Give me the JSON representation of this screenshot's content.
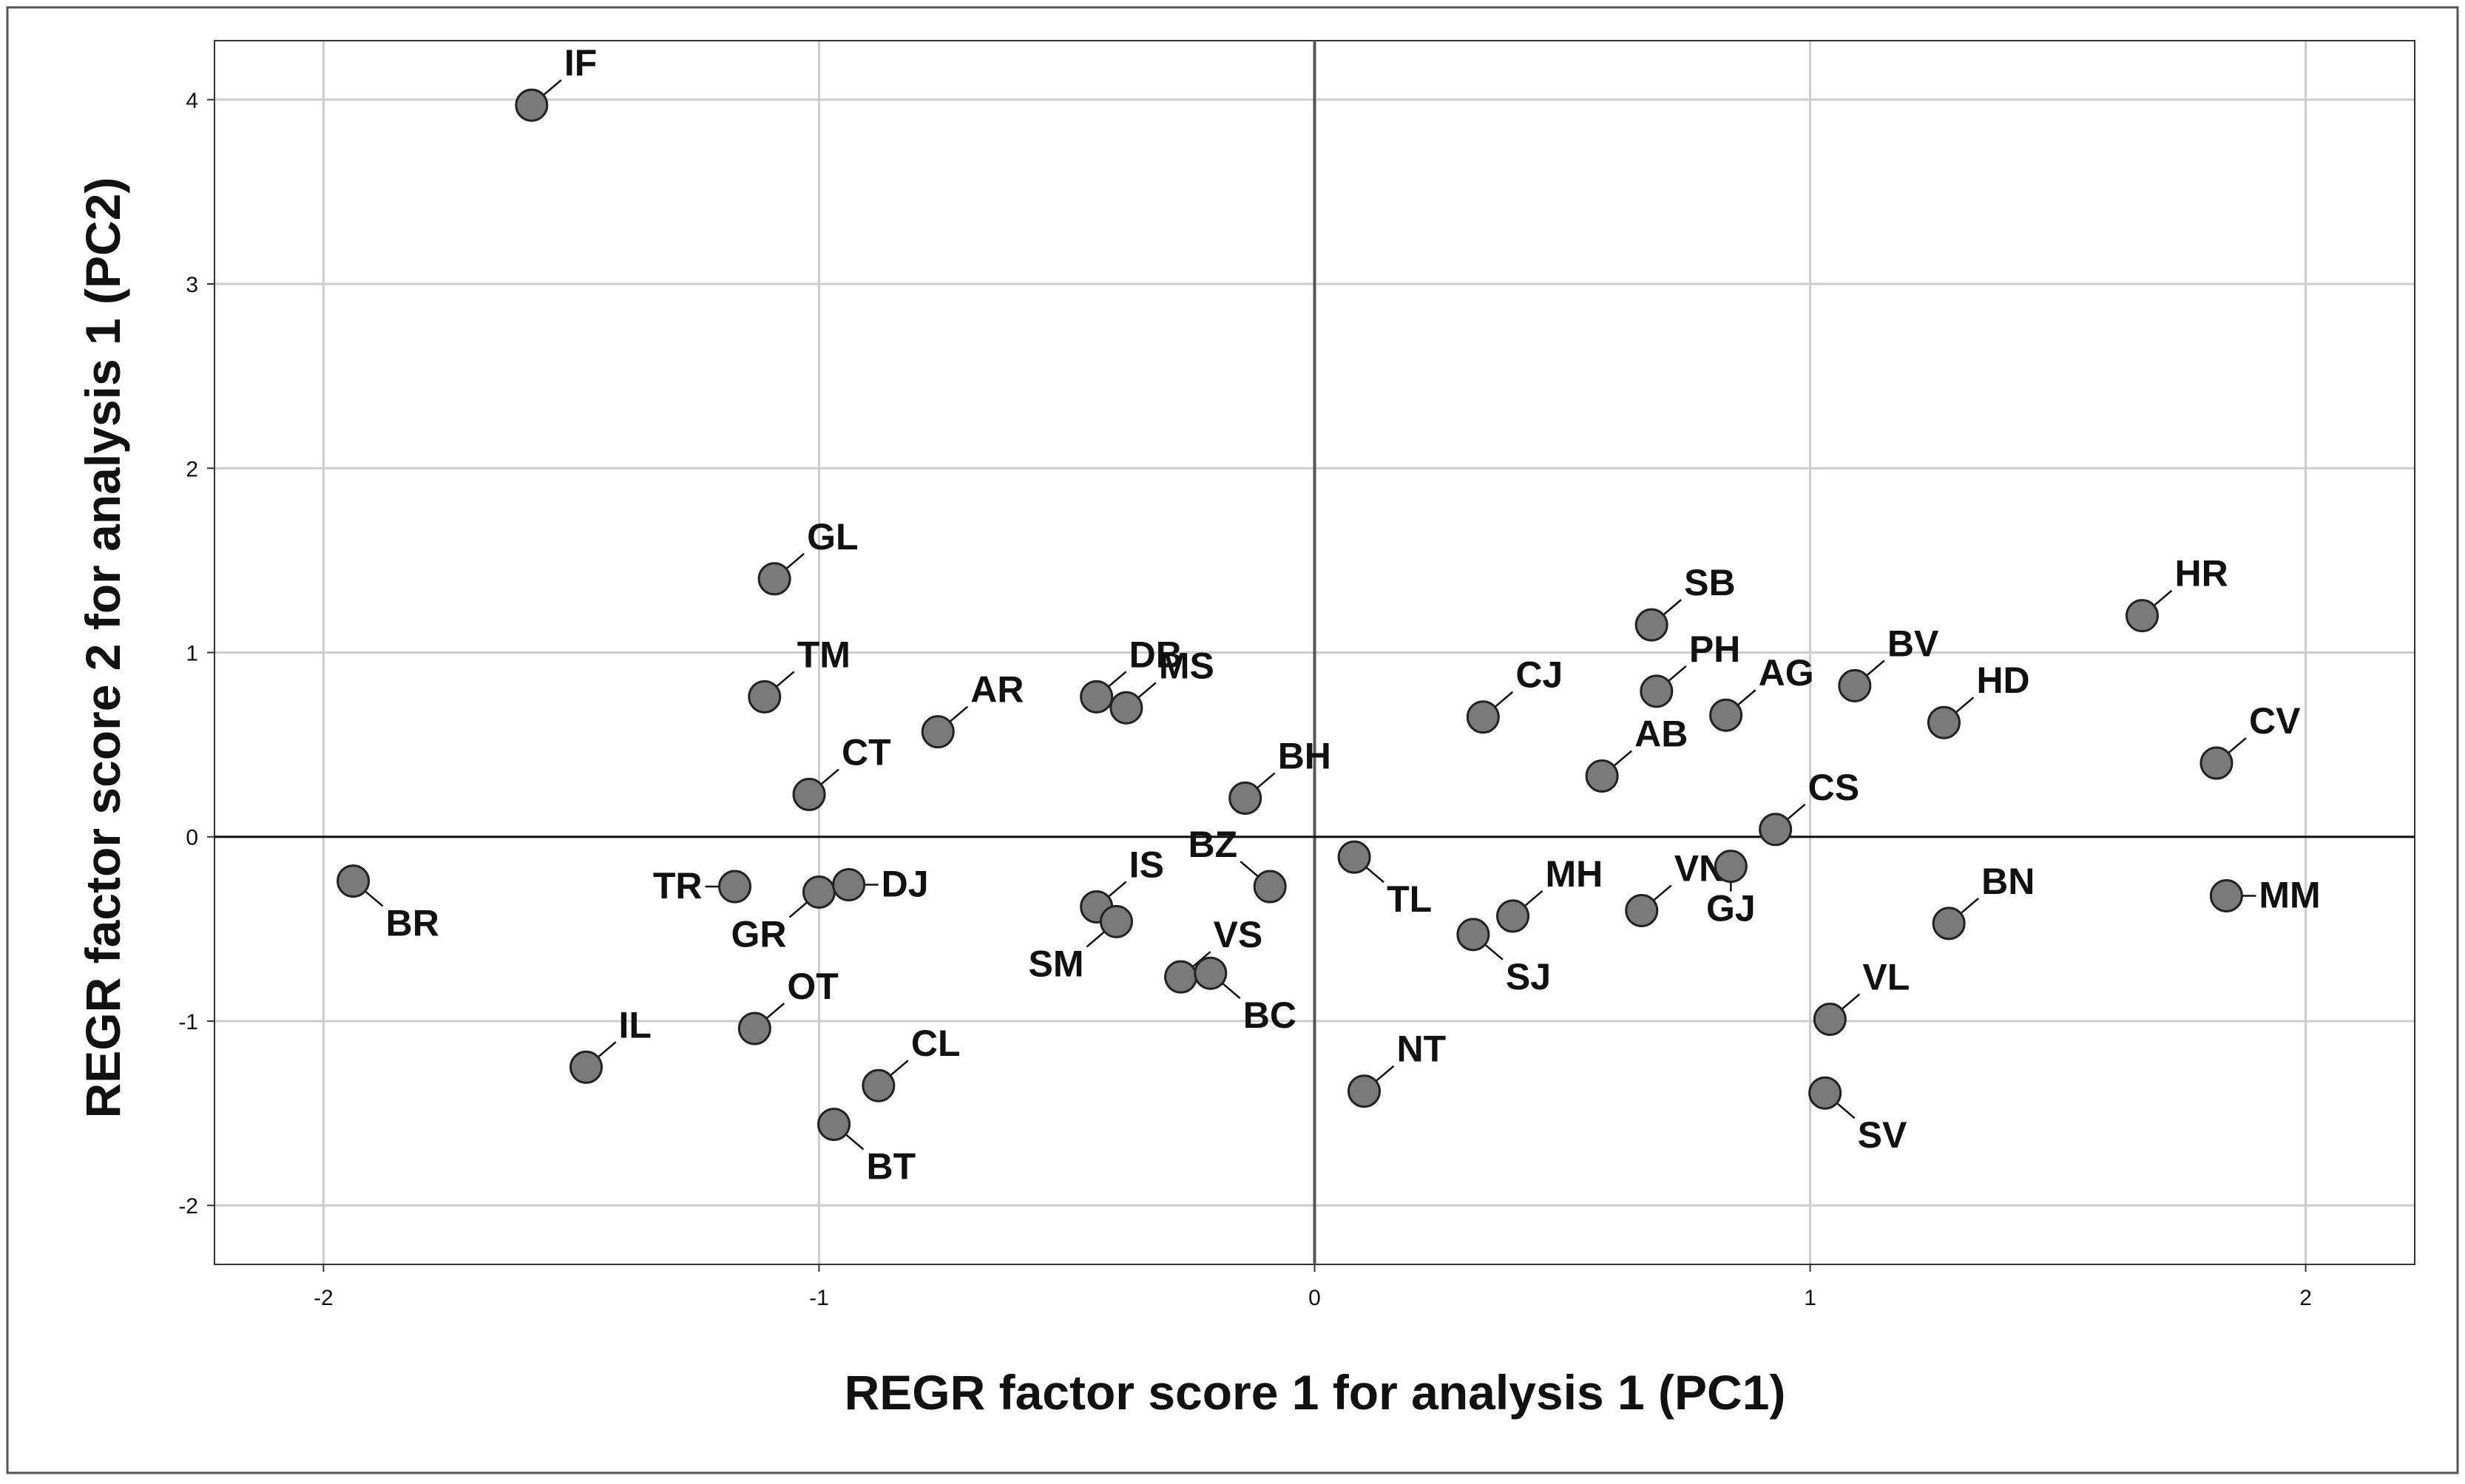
{
  "chart_data": {
    "type": "scatter",
    "xlabel": "REGR factor score   1 for analysis 1 (PC1)",
    "ylabel": "REGR factor score   2 for analysis 1 (PC2)",
    "xlim": [
      -2.22,
      2.22
    ],
    "ylim": [
      -2.32,
      4.32
    ],
    "xticks": [
      -2,
      -1,
      0,
      1,
      2
    ],
    "yticks": [
      -2,
      -1,
      0,
      1,
      2,
      3,
      4
    ],
    "grid": true,
    "reference_lines": {
      "x": 0,
      "y": 0
    },
    "colors": {
      "marker_fill": "#7a7a7a",
      "marker_edge": "#222222",
      "grid": "#cccccc",
      "text": "#111111"
    },
    "points": [
      {
        "label": "IF",
        "x": -1.58,
        "y": 3.97
      },
      {
        "label": "GL",
        "x": -1.09,
        "y": 1.4
      },
      {
        "label": "TM",
        "x": -1.11,
        "y": 0.76
      },
      {
        "label": "CT",
        "x": -1.02,
        "y": 0.23
      },
      {
        "label": "AR",
        "x": -0.76,
        "y": 0.57
      },
      {
        "label": "DB",
        "x": -0.44,
        "y": 0.76
      },
      {
        "label": "MS",
        "x": -0.38,
        "y": 0.7
      },
      {
        "label": "BH",
        "x": -0.14,
        "y": 0.21
      },
      {
        "label": "BR",
        "x": -1.94,
        "y": -0.24
      },
      {
        "label": "TR",
        "x": -1.17,
        "y": -0.27
      },
      {
        "label": "GR",
        "x": -1.0,
        "y": -0.3
      },
      {
        "label": "DJ",
        "x": -0.94,
        "y": -0.26
      },
      {
        "label": "IS",
        "x": -0.44,
        "y": -0.38
      },
      {
        "label": "SM",
        "x": -0.4,
        "y": -0.46
      },
      {
        "label": "BZ",
        "x": -0.09,
        "y": -0.27
      },
      {
        "label": "VS",
        "x": -0.27,
        "y": -0.76
      },
      {
        "label": "BC",
        "x": -0.21,
        "y": -0.74
      },
      {
        "label": "OT",
        "x": -1.13,
        "y": -1.04
      },
      {
        "label": "IL",
        "x": -1.47,
        "y": -1.25
      },
      {
        "label": "CL",
        "x": -0.88,
        "y": -1.35
      },
      {
        "label": "BT",
        "x": -0.97,
        "y": -1.56
      },
      {
        "label": "TL",
        "x": 0.08,
        "y": -0.11
      },
      {
        "label": "NT",
        "x": 0.1,
        "y": -1.38
      },
      {
        "label": "MH",
        "x": 0.4,
        "y": -0.43
      },
      {
        "label": "SJ",
        "x": 0.32,
        "y": -0.53
      },
      {
        "label": "CJ",
        "x": 0.34,
        "y": 0.65
      },
      {
        "label": "AB",
        "x": 0.58,
        "y": 0.33
      },
      {
        "label": "SB",
        "x": 0.68,
        "y": 1.15
      },
      {
        "label": "PH",
        "x": 0.69,
        "y": 0.79
      },
      {
        "label": "AG",
        "x": 0.83,
        "y": 0.66
      },
      {
        "label": "VN",
        "x": 0.66,
        "y": -0.4
      },
      {
        "label": "GJ",
        "x": 0.84,
        "y": -0.16
      },
      {
        "label": "CS",
        "x": 0.93,
        "y": 0.04
      },
      {
        "label": "BV",
        "x": 1.09,
        "y": 0.82
      },
      {
        "label": "HD",
        "x": 1.27,
        "y": 0.62
      },
      {
        "label": "HR",
        "x": 1.67,
        "y": 1.2
      },
      {
        "label": "CV",
        "x": 1.82,
        "y": 0.4
      },
      {
        "label": "BN",
        "x": 1.28,
        "y": -0.47
      },
      {
        "label": "MM",
        "x": 1.84,
        "y": -0.32
      },
      {
        "label": "VL",
        "x": 1.04,
        "y": -0.99
      },
      {
        "label": "SV",
        "x": 1.03,
        "y": -1.39
      }
    ]
  }
}
